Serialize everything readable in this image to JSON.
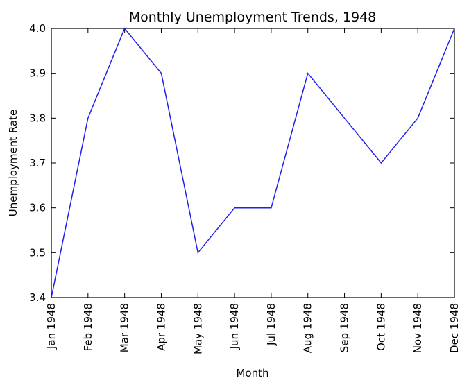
{
  "chart_data": {
    "type": "line",
    "title": "Monthly Unemployment Trends, 1948",
    "xlabel": "Month",
    "ylabel": "Unemployment Rate",
    "categories": [
      "Jan 1948",
      "Feb 1948",
      "Mar 1948",
      "Apr 1948",
      "May 1948",
      "Jun 1948",
      "Jul 1948",
      "Aug 1948",
      "Sep 1948",
      "Oct 1948",
      "Nov 1948",
      "Dec 1948"
    ],
    "series": [
      {
        "values": [
          3.4,
          3.8,
          4.0,
          3.9,
          3.5,
          3.6,
          3.6,
          3.9,
          3.8,
          3.7,
          3.8,
          4.0
        ],
        "color": "#1f1fee"
      }
    ],
    "ylim": [
      3.4,
      4.0
    ],
    "yticks": [
      "3.4",
      "3.5",
      "3.6",
      "3.7",
      "3.8",
      "3.9",
      "4.0"
    ],
    "grid": false,
    "legend": "none"
  }
}
